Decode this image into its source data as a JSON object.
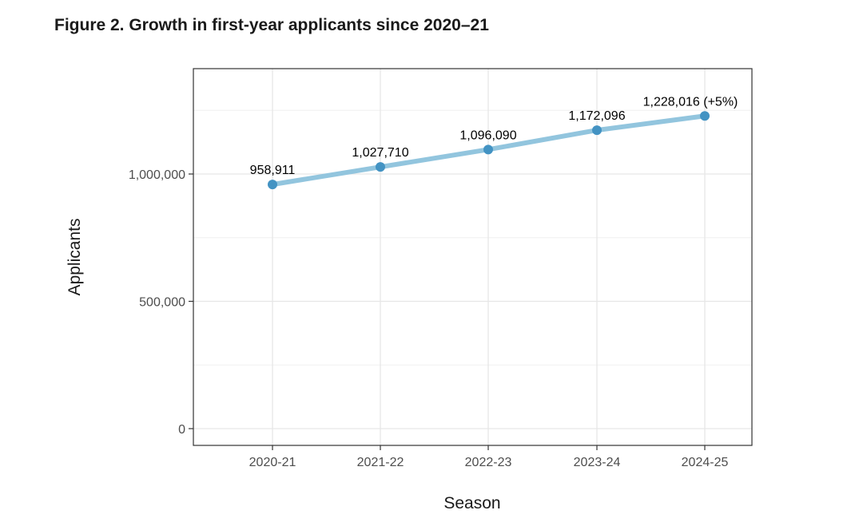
{
  "figure": {
    "title": "Figure 2. Growth in first-year applicants since 2020–21"
  },
  "chart_data": {
    "type": "line",
    "title": "Figure 2. Growth in first-year applicants since 2020–21",
    "xlabel": "Season",
    "ylabel": "Applicants",
    "categories": [
      "2020-21",
      "2021-22",
      "2022-23",
      "2023-24",
      "2024-25"
    ],
    "series": [
      {
        "values": [
          958911,
          1027710,
          1096090,
          1172096,
          1228016
        ],
        "labels": [
          "958,911",
          "1,027,710",
          "1,096,090",
          "1,172,096",
          "1,228,016 (+5%)"
        ]
      }
    ],
    "ylim": [
      0,
      1380000
    ],
    "yticks": [
      0,
      500000,
      1000000
    ],
    "ytick_labels": [
      "0",
      "500,000",
      "1,000,000"
    ],
    "y_minor_gridlines": [
      250000,
      750000,
      1250000
    ],
    "grid": true,
    "line_color": "#92c5de",
    "point_color": "#4393c3"
  }
}
